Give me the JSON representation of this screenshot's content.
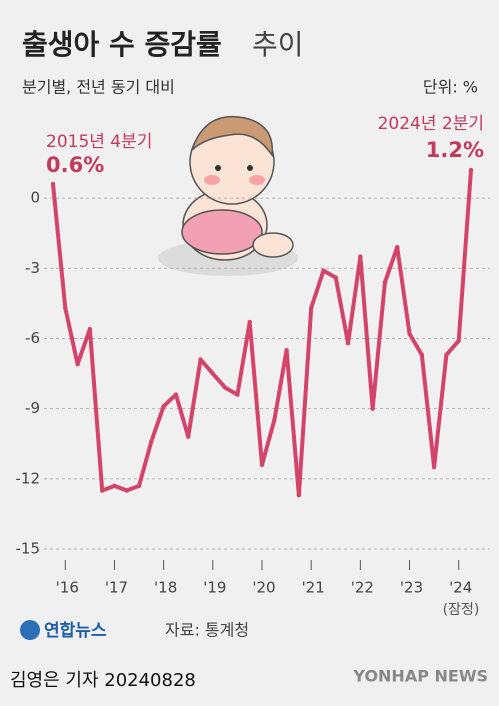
{
  "chart_data": {
    "type": "line",
    "title": "출생아 수 증감률",
    "title_light": "추이",
    "subtitle": "분기별, 전년 동기 대비",
    "unit": "단위: %",
    "categories": [
      null,
      "'16",
      null,
      null,
      null,
      "'17",
      null,
      null,
      null,
      "'18",
      null,
      null,
      null,
      "'19",
      null,
      null,
      null,
      "'20",
      null,
      null,
      null,
      "'21",
      null,
      null,
      null,
      "'22",
      null,
      null,
      null,
      "'23",
      null,
      null,
      null,
      "'24",
      null
    ],
    "x_note": "(잠정)",
    "values": [
      0.6,
      -4.7,
      -7.1,
      -5.6,
      -12.5,
      -12.3,
      -12.5,
      -12.3,
      -10.4,
      -8.9,
      -8.4,
      -10.2,
      -6.9,
      -7.5,
      -8.1,
      -8.4,
      -5.3,
      -11.4,
      -9.5,
      -6.5,
      -12.7,
      -4.7,
      -3.1,
      -3.4,
      -6.2,
      -2.5,
      -9.0,
      -3.6,
      -2.1,
      -5.8,
      -6.7,
      -11.5,
      -6.7,
      -6.1,
      1.2
    ],
    "value_labels": [
      "0.6%",
      null,
      null,
      null,
      null,
      null,
      null,
      null,
      null,
      null,
      null,
      null,
      null,
      null,
      null,
      null,
      null,
      null,
      null,
      null,
      null,
      null,
      null,
      null,
      null,
      null,
      null,
      null,
      null,
      null,
      null,
      null,
      null,
      null,
      "1.2%"
    ],
    "annotations": [
      "2015년 4분기",
      "2024년 2분기"
    ],
    "color": "#d3446b",
    "ylim": [
      -15,
      1.5
    ],
    "yticks": [
      0,
      -3,
      -6,
      -9,
      -12,
      -15
    ],
    "grid": true,
    "source": "자료: 통계청",
    "logo": "연합뉴스",
    "byline": "김영은 기자 20240828",
    "agency": "YONHAP NEWS"
  }
}
